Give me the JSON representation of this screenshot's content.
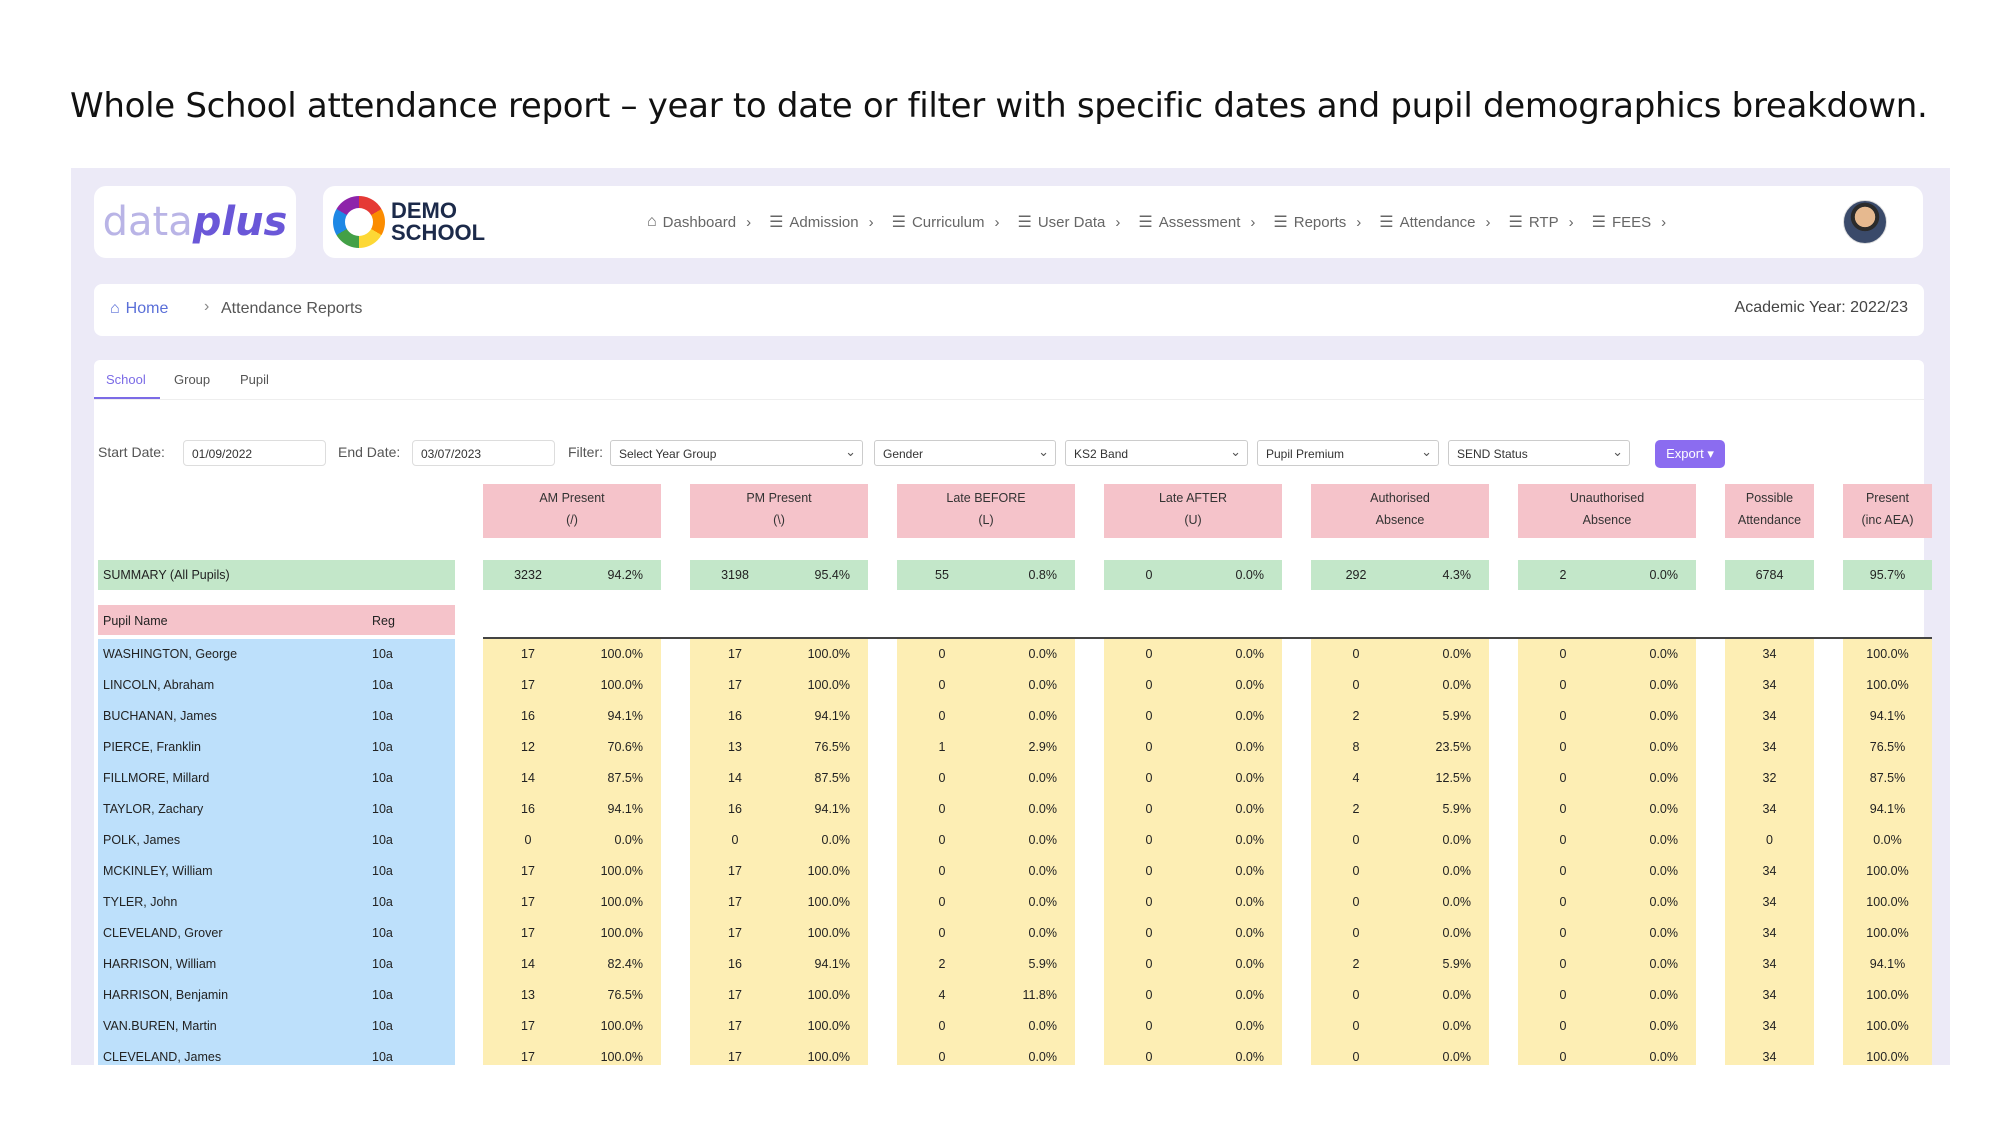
{
  "slide_title": "Whole School attendance report – year to date or filter with specific dates and pupil demographics breakdown.",
  "brand": {
    "logo": "dataplus",
    "logo_part1": "data",
    "logo_part2": "plus",
    "school_line1": "DEMO",
    "school_line2": "SCHOOL"
  },
  "nav": [
    {
      "label": "Dashboard",
      "icon": "home-icon"
    },
    {
      "label": "Admission",
      "icon": "menu-icon"
    },
    {
      "label": "Curriculum",
      "icon": "menu-icon"
    },
    {
      "label": "User Data",
      "icon": "menu-icon"
    },
    {
      "label": "Assessment",
      "icon": "menu-icon"
    },
    {
      "label": "Reports",
      "icon": "menu-icon"
    },
    {
      "label": "Attendance",
      "icon": "menu-icon"
    },
    {
      "label": "RTP",
      "icon": "menu-icon"
    },
    {
      "label": "FEES",
      "icon": "menu-icon"
    }
  ],
  "breadcrumb": {
    "home": "Home",
    "current": "Attendance Reports",
    "academic_year": "Academic Year: 2022/23"
  },
  "tabs": [
    "School",
    "Group",
    "Pupil"
  ],
  "filters": {
    "start_label": "Start Date:",
    "start_value": "01/09/2022",
    "end_label": "End Date:",
    "end_value": "03/07/2023",
    "filter_label": "Filter:",
    "selects": [
      "Select Year Group",
      "Gender",
      "KS2 Band",
      "Pupil Premium",
      "SEND Status"
    ],
    "export": "Export"
  },
  "columns": [
    {
      "line1": "AM Present",
      "line2": "(/)"
    },
    {
      "line1": "PM Present",
      "line2": "(\\)"
    },
    {
      "line1": "Late BEFORE",
      "line2": "(L)"
    },
    {
      "line1": "Late AFTER",
      "line2": "(U)"
    },
    {
      "line1": "Authorised",
      "line2": "Absence"
    },
    {
      "line1": "Unauthorised",
      "line2": "Absence"
    },
    {
      "line1": "Possible",
      "line2": "Attendance"
    },
    {
      "line1": "Present",
      "line2": "(inc AEA)"
    }
  ],
  "summary": {
    "label": "SUMMARY (All Pupils)",
    "values": [
      [
        "3232",
        "94.2%"
      ],
      [
        "3198",
        "95.4%"
      ],
      [
        "55",
        "0.8%"
      ],
      [
        "0",
        "0.0%"
      ],
      [
        "292",
        "4.3%"
      ],
      [
        "2",
        "0.0%"
      ],
      [
        "6784"
      ],
      [
        "95.7%"
      ]
    ]
  },
  "table_header": {
    "name": "Pupil Name",
    "reg": "Reg"
  },
  "pupils": [
    {
      "name": "WASHINGTON, George",
      "reg": "10a",
      "v": [
        [
          "17",
          "100.0%"
        ],
        [
          "17",
          "100.0%"
        ],
        [
          "0",
          "0.0%"
        ],
        [
          "0",
          "0.0%"
        ],
        [
          "0",
          "0.0%"
        ],
        [
          "0",
          "0.0%"
        ],
        [
          "34"
        ],
        [
          "100.0%"
        ]
      ]
    },
    {
      "name": "LINCOLN, Abraham",
      "reg": "10a",
      "v": [
        [
          "17",
          "100.0%"
        ],
        [
          "17",
          "100.0%"
        ],
        [
          "0",
          "0.0%"
        ],
        [
          "0",
          "0.0%"
        ],
        [
          "0",
          "0.0%"
        ],
        [
          "0",
          "0.0%"
        ],
        [
          "34"
        ],
        [
          "100.0%"
        ]
      ]
    },
    {
      "name": "BUCHANAN, James",
      "reg": "10a",
      "v": [
        [
          "16",
          "94.1%"
        ],
        [
          "16",
          "94.1%"
        ],
        [
          "0",
          "0.0%"
        ],
        [
          "0",
          "0.0%"
        ],
        [
          "2",
          "5.9%"
        ],
        [
          "0",
          "0.0%"
        ],
        [
          "34"
        ],
        [
          "94.1%"
        ]
      ]
    },
    {
      "name": "PIERCE, Franklin",
      "reg": "10a",
      "v": [
        [
          "12",
          "70.6%"
        ],
        [
          "13",
          "76.5%"
        ],
        [
          "1",
          "2.9%"
        ],
        [
          "0",
          "0.0%"
        ],
        [
          "8",
          "23.5%"
        ],
        [
          "0",
          "0.0%"
        ],
        [
          "34"
        ],
        [
          "76.5%"
        ]
      ]
    },
    {
      "name": "FILLMORE, Millard",
      "reg": "10a",
      "v": [
        [
          "14",
          "87.5%"
        ],
        [
          "14",
          "87.5%"
        ],
        [
          "0",
          "0.0%"
        ],
        [
          "0",
          "0.0%"
        ],
        [
          "4",
          "12.5%"
        ],
        [
          "0",
          "0.0%"
        ],
        [
          "32"
        ],
        [
          "87.5%"
        ]
      ]
    },
    {
      "name": "TAYLOR, Zachary",
      "reg": "10a",
      "v": [
        [
          "16",
          "94.1%"
        ],
        [
          "16",
          "94.1%"
        ],
        [
          "0",
          "0.0%"
        ],
        [
          "0",
          "0.0%"
        ],
        [
          "2",
          "5.9%"
        ],
        [
          "0",
          "0.0%"
        ],
        [
          "34"
        ],
        [
          "94.1%"
        ]
      ]
    },
    {
      "name": "POLK, James",
      "reg": "10a",
      "v": [
        [
          "0",
          "0.0%"
        ],
        [
          "0",
          "0.0%"
        ],
        [
          "0",
          "0.0%"
        ],
        [
          "0",
          "0.0%"
        ],
        [
          "0",
          "0.0%"
        ],
        [
          "0",
          "0.0%"
        ],
        [
          "0"
        ],
        [
          "0.0%"
        ]
      ]
    },
    {
      "name": "MCKINLEY, William",
      "reg": "10a",
      "v": [
        [
          "17",
          "100.0%"
        ],
        [
          "17",
          "100.0%"
        ],
        [
          "0",
          "0.0%"
        ],
        [
          "0",
          "0.0%"
        ],
        [
          "0",
          "0.0%"
        ],
        [
          "0",
          "0.0%"
        ],
        [
          "34"
        ],
        [
          "100.0%"
        ]
      ]
    },
    {
      "name": "TYLER, John",
      "reg": "10a",
      "v": [
        [
          "17",
          "100.0%"
        ],
        [
          "17",
          "100.0%"
        ],
        [
          "0",
          "0.0%"
        ],
        [
          "0",
          "0.0%"
        ],
        [
          "0",
          "0.0%"
        ],
        [
          "0",
          "0.0%"
        ],
        [
          "34"
        ],
        [
          "100.0%"
        ]
      ]
    },
    {
      "name": "CLEVELAND, Grover",
      "reg": "10a",
      "v": [
        [
          "17",
          "100.0%"
        ],
        [
          "17",
          "100.0%"
        ],
        [
          "0",
          "0.0%"
        ],
        [
          "0",
          "0.0%"
        ],
        [
          "0",
          "0.0%"
        ],
        [
          "0",
          "0.0%"
        ],
        [
          "34"
        ],
        [
          "100.0%"
        ]
      ]
    },
    {
      "name": "HARRISON, William",
      "reg": "10a",
      "v": [
        [
          "14",
          "82.4%"
        ],
        [
          "16",
          "94.1%"
        ],
        [
          "2",
          "5.9%"
        ],
        [
          "0",
          "0.0%"
        ],
        [
          "2",
          "5.9%"
        ],
        [
          "0",
          "0.0%"
        ],
        [
          "34"
        ],
        [
          "94.1%"
        ]
      ]
    },
    {
      "name": "HARRISON, Benjamin",
      "reg": "10a",
      "v": [
        [
          "13",
          "76.5%"
        ],
        [
          "17",
          "100.0%"
        ],
        [
          "4",
          "11.8%"
        ],
        [
          "0",
          "0.0%"
        ],
        [
          "0",
          "0.0%"
        ],
        [
          "0",
          "0.0%"
        ],
        [
          "34"
        ],
        [
          "100.0%"
        ]
      ]
    },
    {
      "name": "VAN.BUREN, Martin",
      "reg": "10a",
      "v": [
        [
          "17",
          "100.0%"
        ],
        [
          "17",
          "100.0%"
        ],
        [
          "0",
          "0.0%"
        ],
        [
          "0",
          "0.0%"
        ],
        [
          "0",
          "0.0%"
        ],
        [
          "0",
          "0.0%"
        ],
        [
          "34"
        ],
        [
          "100.0%"
        ]
      ]
    },
    {
      "name": "CLEVELAND, James",
      "reg": "10a",
      "v": [
        [
          "17",
          "100.0%"
        ],
        [
          "17",
          "100.0%"
        ],
        [
          "0",
          "0.0%"
        ],
        [
          "0",
          "0.0%"
        ],
        [
          "0",
          "0.0%"
        ],
        [
          "0",
          "0.0%"
        ],
        [
          "34"
        ],
        [
          "100.0%"
        ]
      ]
    }
  ],
  "colors": {
    "accent": "#7b6be6",
    "header_pink": "#f5c3ca",
    "summary_green": "#c3e7c9",
    "cell_yellow": "#fdeeb4",
    "name_blue": "#bde0fb"
  }
}
